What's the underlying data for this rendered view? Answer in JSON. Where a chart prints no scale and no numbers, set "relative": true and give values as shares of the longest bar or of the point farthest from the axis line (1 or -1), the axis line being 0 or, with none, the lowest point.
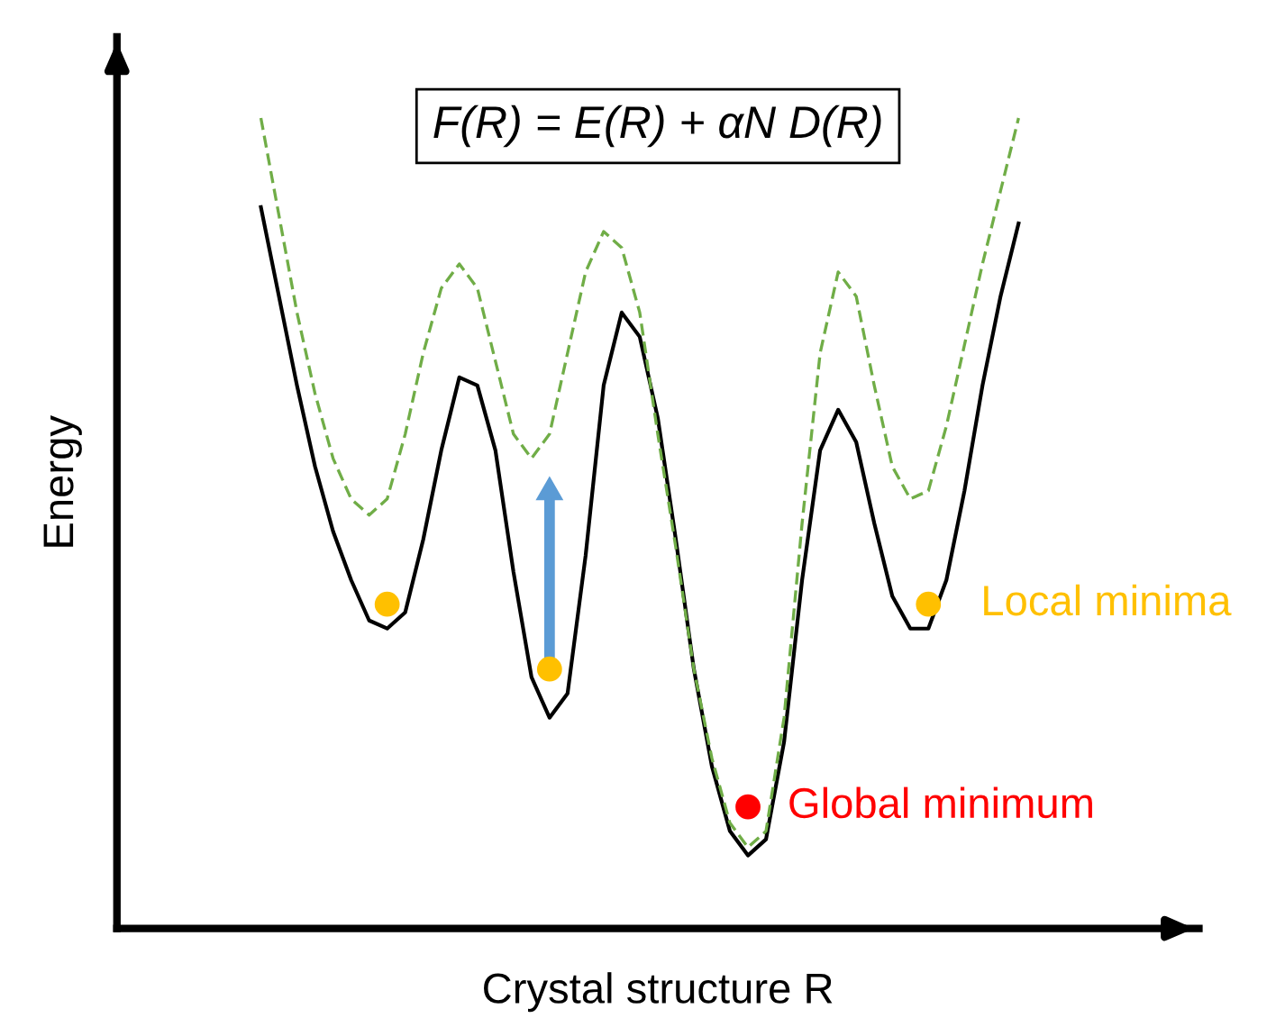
{
  "chart_data": {
    "type": "line",
    "relative": true,
    "title": "F(R) = E(R) + αN D(R)",
    "xlabel": "Crystal structure R",
    "ylabel": "Energy",
    "categories": [
      null,
      null,
      null,
      null,
      null,
      null,
      null,
      null,
      null,
      null,
      null,
      null,
      null,
      null,
      null,
      null,
      null,
      null,
      null,
      null,
      null,
      null,
      null,
      null,
      null,
      null,
      null,
      null,
      null,
      null,
      null,
      null,
      null,
      null,
      null,
      null,
      null,
      null,
      null,
      null,
      null,
      null,
      null
    ],
    "series": [
      {
        "color": "#000000",
        "line_style": "solid",
        "values": [
          0.89,
          0.78,
          0.67,
          0.57,
          0.49,
          0.43,
          0.38,
          0.37,
          0.39,
          0.48,
          0.59,
          0.68,
          0.67,
          0.59,
          0.44,
          0.31,
          0.26,
          0.29,
          0.46,
          0.67,
          0.76,
          0.73,
          0.63,
          0.48,
          0.32,
          0.2,
          0.12,
          0.09,
          0.11,
          0.23,
          0.43,
          0.59,
          0.64,
          0.6,
          0.5,
          0.41,
          0.37,
          0.37,
          0.43,
          0.54,
          0.67,
          0.78,
          0.87
        ]
      },
      {
        "color": "#70ad47",
        "line_style": "dashed",
        "values": [
          1,
          0.88,
          0.76,
          0.66,
          0.58,
          0.53,
          0.51,
          0.53,
          0.61,
          0.71,
          0.79,
          0.82,
          0.79,
          0.7,
          0.61,
          0.58,
          0.61,
          0.71,
          0.81,
          0.86,
          0.84,
          0.76,
          0.61,
          0.47,
          0.32,
          0.21,
          0.13,
          0.1,
          0.12,
          0.26,
          0.5,
          0.71,
          0.81,
          0.78,
          0.67,
          0.57,
          0.53,
          0.54,
          0.62,
          0.72,
          0.82,
          0.91,
          1
        ]
      }
    ],
    "annotations": [
      "Local minima",
      "Global minimum"
    ]
  }
}
